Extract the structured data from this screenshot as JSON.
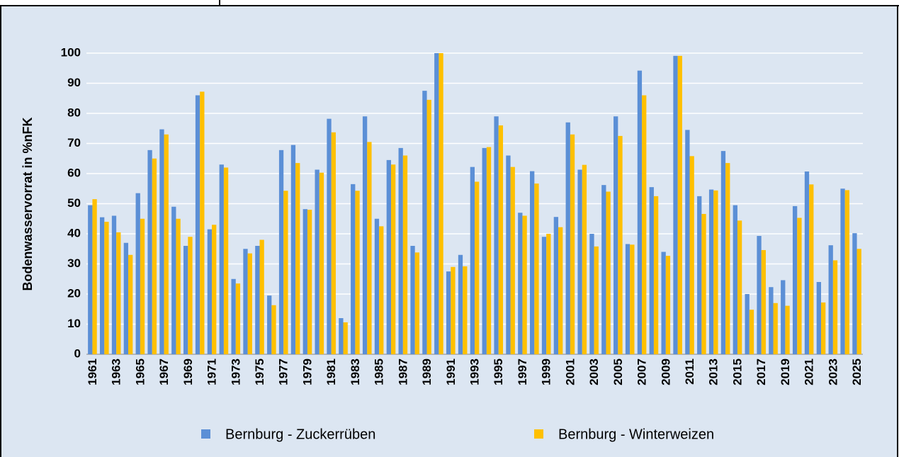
{
  "chart_data": {
    "type": "bar",
    "y_label": "Bodenwasservorrat in %nFK",
    "categories": [
      "1961",
      null,
      "1963",
      null,
      "1965",
      null,
      "1967",
      null,
      "1969",
      null,
      "1971",
      null,
      "1973",
      null,
      "1975",
      null,
      "1977",
      null,
      "1979",
      null,
      "1981",
      null,
      "1983",
      null,
      "1985",
      null,
      "1987",
      null,
      "1989",
      null,
      "1991",
      null,
      "1993",
      null,
      "1995",
      null,
      "1997",
      null,
      "1999",
      null,
      "2001",
      null,
      "2003",
      null,
      "2005",
      null,
      "2007",
      null,
      "2009",
      null,
      "2011",
      null,
      "2013",
      null,
      "2015",
      null,
      "2017",
      null,
      "2019",
      null,
      "2021",
      null,
      "2023",
      null,
      "2025"
    ],
    "series": [
      {
        "name": "Bernburg - Zuckerrüben",
        "color": "#5b8fd6",
        "values": [
          49.5,
          45.5,
          46,
          37,
          53.5,
          67.8,
          74.7,
          49,
          36,
          86,
          41.5,
          63,
          25,
          35,
          36,
          19.5,
          67.8,
          69.5,
          48.2,
          61.3,
          78.2,
          12,
          56.5,
          79,
          45,
          64.5,
          68.5,
          36,
          87.5,
          100,
          27.5,
          33,
          62.2,
          68.5,
          79,
          66,
          47,
          60.8,
          39,
          45.6,
          77,
          61.3,
          40,
          56.2,
          79,
          36.6,
          94.2,
          55.5,
          34,
          99.1,
          74.5,
          52.5,
          54.7,
          67.5,
          49.5,
          20,
          39.3,
          22.3,
          24.6,
          49.2,
          60.7,
          24,
          36.2,
          55,
          40.2
        ]
      },
      {
        "name": "Bernburg - Winterweizen",
        "color": "#ffc000",
        "values": [
          51.5,
          44,
          40.5,
          33,
          45,
          65,
          73,
          45,
          39,
          87.2,
          43,
          62,
          23.5,
          33.5,
          38,
          16.3,
          54.3,
          63.5,
          48,
          60.3,
          73.7,
          10.6,
          54.3,
          70.5,
          42.5,
          63,
          66,
          33.8,
          84.5,
          100,
          29,
          29.2,
          57.3,
          68.8,
          76,
          62.2,
          46,
          56.7,
          40,
          42.2,
          73,
          62.9,
          35.8,
          54,
          72.5,
          36.4,
          86,
          52.5,
          32.7,
          99.1,
          65.8,
          46.6,
          54.4,
          63.5,
          44.4,
          14.8,
          34.6,
          17,
          16.1,
          45.3,
          56.4,
          17.2,
          31.2,
          54.5,
          35
        ]
      }
    ],
    "ylim": [
      0,
      100
    ],
    "yticks": [
      0,
      10,
      20,
      30,
      40,
      50,
      60,
      70,
      80,
      90,
      100
    ],
    "grid": true,
    "legend": "bottom"
  }
}
